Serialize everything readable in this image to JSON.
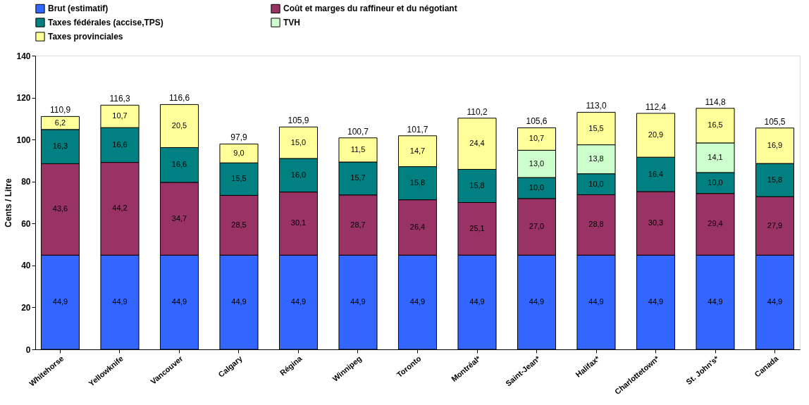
{
  "chart_data": {
    "type": "bar",
    "stacked": true,
    "ylabel": "Cents / Litre",
    "categories": [
      "Whitehorse",
      "Yellowknife",
      "Vancouver",
      "Calgary",
      "Régina",
      "Winnipeg",
      "Toronto",
      "Montréal*",
      "Saint-Jean*",
      "Halifax*",
      "Charlottetown*",
      "St. John's*",
      "Canada"
    ],
    "series": [
      {
        "name": "Brut (estimatif)",
        "color": "#3366ff",
        "values": [
          44.9,
          44.9,
          44.9,
          44.9,
          44.9,
          44.9,
          44.9,
          44.9,
          44.9,
          44.9,
          44.9,
          44.9,
          44.9
        ],
        "value_labels": [
          "44,9",
          "44,9",
          "44,9",
          "44,9",
          "44,9",
          "44,9",
          "44,9",
          "44,9",
          "44,9",
          "44,9",
          "44,9",
          "44,9",
          "44,9"
        ]
      },
      {
        "name": "Coût et marges du raffineur et du négotiant",
        "color": "#993366",
        "values": [
          43.6,
          44.2,
          34.7,
          28.5,
          30.1,
          28.7,
          26.4,
          25.1,
          27.0,
          28.8,
          30.3,
          29.4,
          27.9
        ],
        "value_labels": [
          "43,6",
          "44,2",
          "34,7",
          "28,5",
          "30,1",
          "28,7",
          "26,4",
          "25,1",
          "27,0",
          "28,8",
          "30,3",
          "29,4",
          "27,9"
        ]
      },
      {
        "name": "Taxes fédérales (accise,TPS)",
        "color": "#008080",
        "values": [
          16.3,
          16.6,
          16.6,
          15.5,
          16.0,
          15.7,
          15.8,
          15.8,
          10.0,
          10.0,
          16.4,
          10.0,
          15.8
        ],
        "value_labels": [
          "16,3",
          "16,6",
          "16,6",
          "15,5",
          "16,0",
          "15,7",
          "15,8",
          "15,8",
          "10,0",
          "10,0",
          "16,4",
          "10,0",
          "15,8"
        ]
      },
      {
        "name": "TVH",
        "color": "#ccffcc",
        "values": [
          null,
          null,
          null,
          null,
          null,
          null,
          null,
          null,
          13.0,
          13.8,
          null,
          14.1,
          null
        ],
        "value_labels": [
          null,
          null,
          null,
          null,
          null,
          null,
          null,
          null,
          "13,0",
          "13,8",
          null,
          "14,1",
          null
        ]
      },
      {
        "name": "Taxes provinciales",
        "color": "#ffff99",
        "values": [
          6.2,
          10.7,
          20.5,
          9.0,
          15.0,
          11.5,
          14.7,
          24.4,
          10.7,
          15.5,
          20.9,
          16.5,
          16.9
        ],
        "value_labels": [
          "6,2",
          "10,7",
          "20,5",
          "9,0",
          "15,0",
          "11,5",
          "14,7",
          "24,4",
          "10,7",
          "15,5",
          "20,9",
          "16,5",
          "16,9"
        ]
      }
    ],
    "totals": [
      "110,9",
      "116,3",
      "116,6",
      "97,9",
      "105,9",
      "100,7",
      "101,7",
      "110,2",
      "105,6",
      "113,0",
      "112,4",
      "114,8",
      "105,5"
    ],
    "ylim": [
      0,
      140
    ],
    "yticks": [
      0,
      20,
      40,
      60,
      80,
      100,
      120,
      140
    ],
    "grid": false,
    "legend": "top"
  }
}
